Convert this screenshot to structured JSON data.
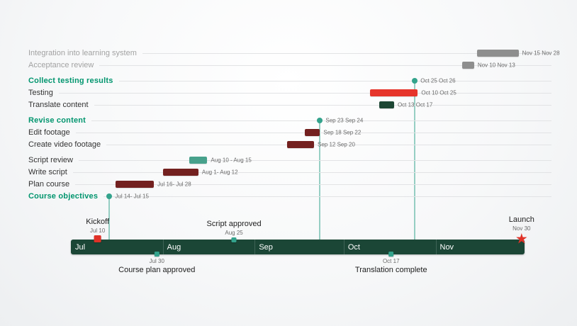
{
  "colors": {
    "section_text": "#00956e",
    "accent": "#33a38c",
    "band": "#1b4636",
    "bar_gray": "#8e8e8e",
    "bar_red": "#e6352b",
    "bar_maroon": "#73201f",
    "bar_darkgreen": "#1d4734",
    "bar_teal": "#47a18c",
    "marker_red": "#e03127",
    "text": "#333333",
    "text_muted": "#a2a2a2",
    "date_text": "#6b6b6b"
  },
  "chart_data": {
    "type": "gantt-timeline",
    "axis": {
      "months": [
        {
          "label": "Jul",
          "days": 31
        },
        {
          "label": "Aug",
          "days": 31
        },
        {
          "label": "Sep",
          "days": 30
        },
        {
          "label": "Oct",
          "days": 31
        },
        {
          "label": "Nov",
          "days": 30
        }
      ]
    },
    "rows": [
      {
        "label": "Integration into learning system",
        "kind": "bar",
        "color": "bar_gray",
        "muted": true,
        "start": "Nov 15",
        "end": "Nov 28",
        "date_label": "Nov 15 Nov 28"
      },
      {
        "label": "Acceptance review",
        "kind": "bar",
        "color": "bar_gray",
        "muted": true,
        "start": "Nov 10",
        "end": "Nov 13",
        "date_label": "Nov 10 Nov 13"
      },
      {
        "label": "Collect testing results",
        "kind": "milestone",
        "gap_before": true,
        "date": "Oct 25",
        "date_label": "Oct 25 Oct 26"
      },
      {
        "label": "Testing",
        "kind": "bar",
        "color": "bar_red",
        "start": "Oct 10",
        "end": "Oct 25",
        "date_label": "Oct 10 Oct 25"
      },
      {
        "label": "Translate content",
        "kind": "bar",
        "color": "bar_darkgreen",
        "start": "Oct 13",
        "end": "Oct 17",
        "date_label": "Oct 13 Oct 17"
      },
      {
        "label": "Revise content",
        "kind": "milestone",
        "gap_before": true,
        "date": "Sep 23",
        "date_label": "Sep 23 Sep 24"
      },
      {
        "label": "Edit footage",
        "kind": "bar",
        "color": "bar_maroon",
        "start": "Sep 18",
        "end": "Sep 22",
        "date_label": "Sep 18 Sep 22"
      },
      {
        "label": "Create video footage",
        "kind": "bar",
        "color": "bar_maroon",
        "start": "Sep 12",
        "end": "Sep 20",
        "date_label": "Sep 12 Sep 20"
      },
      {
        "label": "Script review",
        "kind": "bar",
        "color": "bar_teal",
        "gap_before": true,
        "start": "Aug 10",
        "end": "Aug 15",
        "date_label": "Aug 10 - Aug 15"
      },
      {
        "label": "Write script",
        "kind": "bar",
        "color": "bar_maroon",
        "start": "Aug 1",
        "end": "Aug 12",
        "date_label": "Aug 1- Aug 12"
      },
      {
        "label": "Plan course",
        "kind": "bar",
        "color": "bar_maroon",
        "start": "Jul 16",
        "end": "Jul 28",
        "date_label": "Jul 16- Jul 28"
      },
      {
        "label": "Course objectives",
        "kind": "milestone",
        "date": "Jul 14",
        "date_label": "Jul 14- Jul 15"
      }
    ],
    "milestones_above": [
      {
        "label": "Kickoff",
        "date": "Jul 10",
        "date_label": "Jul 10",
        "marker": "square",
        "marker_color": "marker_red",
        "size": 10
      },
      {
        "label": "Script approved",
        "date": "Aug 25",
        "date_label": "Aug 25",
        "marker": "square",
        "marker_color": "accent",
        "size": 7
      },
      {
        "label": "Launch",
        "date": "Nov 30",
        "date_label": "Nov 30",
        "marker": "star",
        "marker_color": "marker_red",
        "size": 16
      }
    ],
    "milestones_below": [
      {
        "label": "Course plan approved",
        "date": "Jul 30",
        "date_label": "Jul 30",
        "marker": "square",
        "marker_color": "accent",
        "size": 7
      },
      {
        "label": "Translation complete",
        "date": "Oct 17",
        "date_label": "Oct 17",
        "marker": "square",
        "marker_color": "accent",
        "size": 7
      }
    ]
  }
}
